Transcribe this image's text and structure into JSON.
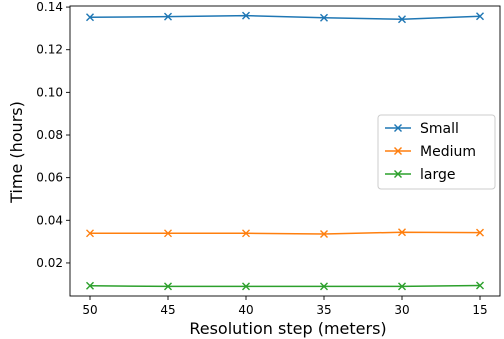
{
  "chart_data": {
    "type": "line",
    "xlabel": "Resolution step (meters)",
    "ylabel": "Time (hours)",
    "categories": [
      "50",
      "45",
      "40",
      "35",
      "30",
      "15"
    ],
    "ylim": [
      0.0045,
      0.1405
    ],
    "yticks": [
      "0.02",
      "0.04",
      "0.06",
      "0.08",
      "0.10",
      "0.12",
      "0.14"
    ],
    "grid": false,
    "legend_position": "center-right",
    "marker": "x",
    "series": [
      {
        "name": "Small",
        "color": "#1f77b4",
        "values": [
          0.1352,
          0.1355,
          0.136,
          0.135,
          0.1343,
          0.1357
        ]
      },
      {
        "name": "Medium",
        "color": "#ff7f0e",
        "values": [
          0.0339,
          0.0339,
          0.0339,
          0.0336,
          0.0344,
          0.0342
        ]
      },
      {
        "name": "large",
        "color": "#2ca02c",
        "values": [
          0.0093,
          0.009,
          0.009,
          0.009,
          0.009,
          0.0094
        ]
      }
    ]
  }
}
